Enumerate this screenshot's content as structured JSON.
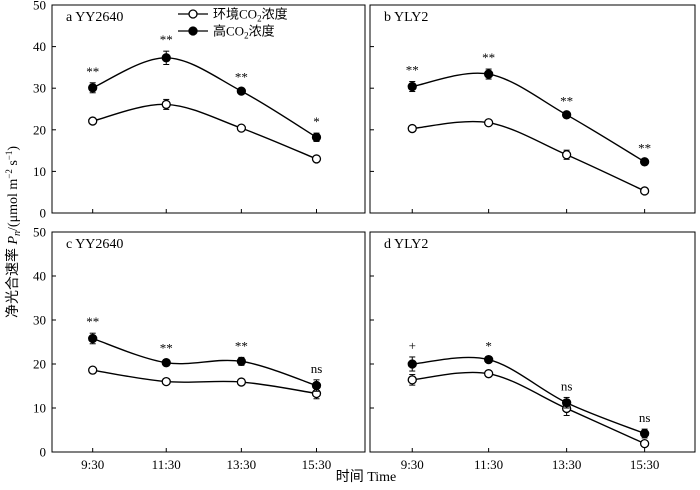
{
  "figure": {
    "y_axis_title_prefix": "净光合速率 ",
    "y_axis_title_symbol": "P",
    "y_axis_title_subscript": "n",
    "y_axis_title_unit": "/(μmol m",
    "y_axis_title_unit_exp1": "−2",
    "y_axis_title_unit_mid": " s",
    "y_axis_title_unit_exp2": "−1",
    "y_axis_title_close": ")",
    "x_axis_title": "时间 Time",
    "legend": {
      "ambient": {
        "prefix": "环境CO",
        "subscript": "2",
        "suffix": "浓度"
      },
      "elevated": {
        "prefix": "高CO",
        "subscript": "2",
        "suffix": "浓度"
      }
    },
    "colors": {
      "elevated": "#000000",
      "ambient": "#ffffff",
      "line": "#000000"
    }
  },
  "chart_data": [
    {
      "type": "line",
      "panel": "a",
      "cultivar": "YY2640",
      "categories": [
        "9:30",
        "11:30",
        "13:30",
        "15:30"
      ],
      "ylim": [
        0,
        50
      ],
      "yticks": [
        0,
        10,
        20,
        30,
        40,
        50
      ],
      "series": [
        {
          "key": "ambient",
          "values": [
            22.1,
            26.1,
            20.4,
            13.0
          ],
          "errors": [
            0.5,
            1.2,
            0.5,
            0.7
          ]
        },
        {
          "key": "elevated",
          "values": [
            30.1,
            37.3,
            29.3,
            18.2
          ],
          "errors": [
            1.2,
            1.6,
            0.6,
            1.0
          ]
        }
      ],
      "significance": [
        "**",
        "**",
        "**",
        "*"
      ]
    },
    {
      "type": "line",
      "panel": "b",
      "cultivar": "YLY2",
      "categories": [
        "9:30",
        "11:30",
        "13:30",
        "15:30"
      ],
      "ylim": [
        0,
        50
      ],
      "yticks": [
        0,
        10,
        20,
        30,
        40,
        50
      ],
      "series": [
        {
          "key": "ambient",
          "values": [
            20.3,
            21.7,
            14.0,
            5.3
          ],
          "errors": [
            0.5,
            0.5,
            1.1,
            0.4
          ]
        },
        {
          "key": "elevated",
          "values": [
            30.4,
            33.4,
            23.6,
            12.3
          ],
          "errors": [
            1.2,
            1.2,
            0.6,
            0.6
          ]
        }
      ],
      "significance": [
        "**",
        "**",
        "**",
        "**"
      ]
    },
    {
      "type": "line",
      "panel": "c",
      "cultivar": "YY2640",
      "categories": [
        "9:30",
        "11:30",
        "13:30",
        "15:30"
      ],
      "ylim": [
        0,
        50
      ],
      "yticks": [
        0,
        10,
        20,
        30,
        40,
        50
      ],
      "series": [
        {
          "key": "ambient",
          "values": [
            18.6,
            16.0,
            15.9,
            13.3
          ],
          "errors": [
            0.4,
            0.4,
            0.5,
            1.2
          ]
        },
        {
          "key": "elevated",
          "values": [
            25.8,
            20.3,
            20.6,
            15.1
          ],
          "errors": [
            1.2,
            0.7,
            0.9,
            1.3
          ]
        }
      ],
      "significance": [
        "**",
        "**",
        "**",
        "ns"
      ]
    },
    {
      "type": "line",
      "panel": "d",
      "cultivar": "YLY2",
      "categories": [
        "9:30",
        "11:30",
        "13:30",
        "15:30"
      ],
      "ylim": [
        0,
        50
      ],
      "yticks": [
        0,
        10,
        20,
        30,
        40,
        50
      ],
      "series": [
        {
          "key": "ambient",
          "values": [
            16.4,
            17.8,
            9.9,
            1.9
          ],
          "errors": [
            1.2,
            0.4,
            1.6,
            0.4
          ]
        },
        {
          "key": "elevated",
          "values": [
            20.0,
            21.0,
            11.2,
            4.2
          ],
          "errors": [
            1.6,
            0.5,
            1.2,
            1.0
          ]
        }
      ],
      "significance": [
        "+",
        "*",
        "ns",
        "ns"
      ]
    }
  ]
}
